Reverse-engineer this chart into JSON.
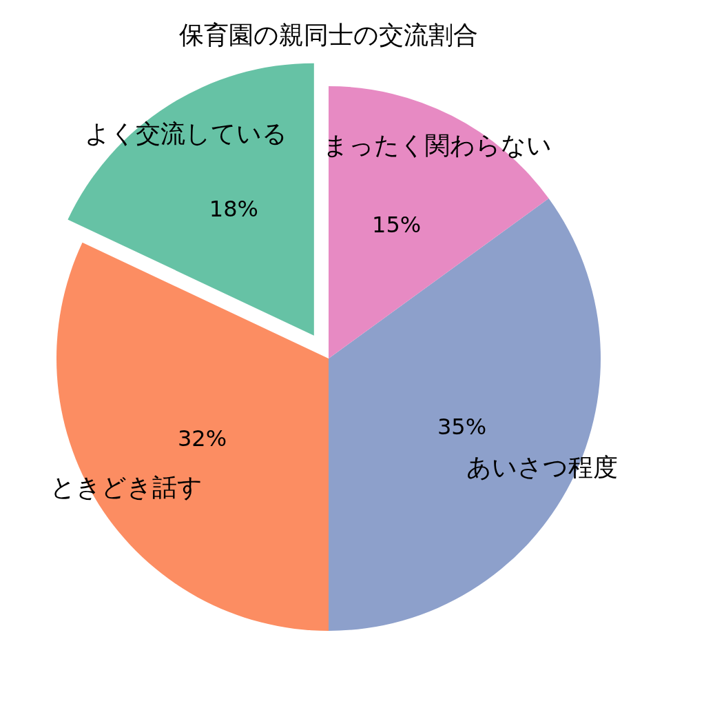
{
  "chart_data": {
    "type": "pie",
    "title": "保育園の親同士の交流割合",
    "categories": [
      "よく交流している",
      "ときどき話す",
      "あいさつ程度",
      "まったく関わらない"
    ],
    "values": [
      18,
      32,
      35,
      15
    ],
    "value_labels": [
      "18%",
      "32%",
      "35%",
      "15%"
    ],
    "colors": [
      "#66c2a5",
      "#fc8d62",
      "#8da0cb",
      "#e78ac3"
    ]
  }
}
